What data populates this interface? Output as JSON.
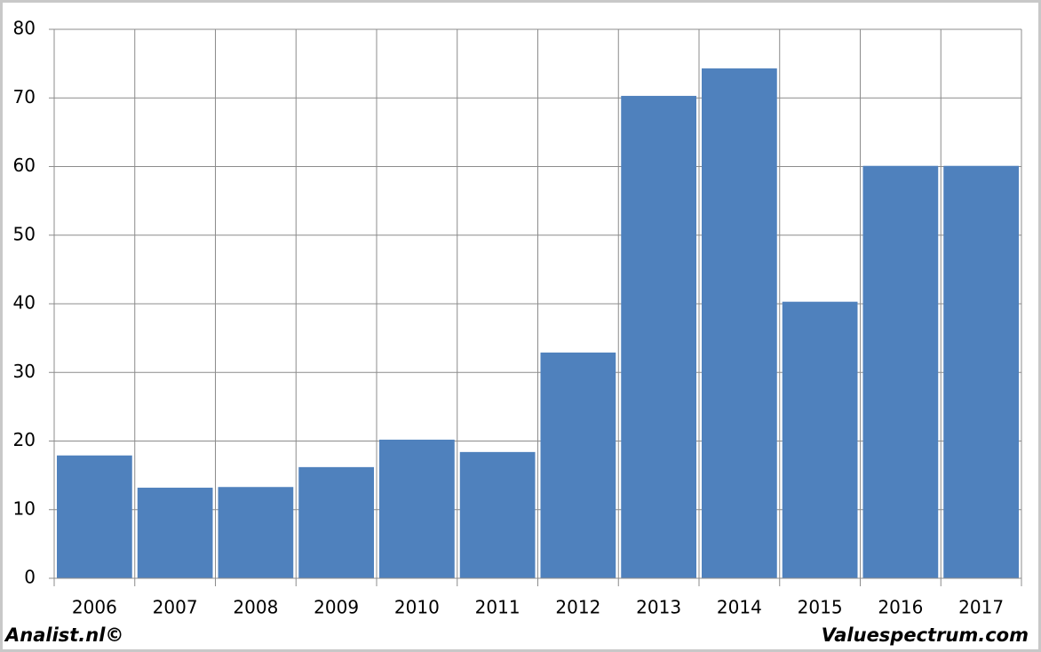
{
  "chart_data": {
    "type": "bar",
    "categories": [
      "2006",
      "2007",
      "2008",
      "2009",
      "2010",
      "2011",
      "2012",
      "2013",
      "2014",
      "2015",
      "2016",
      "2017"
    ],
    "values": [
      17.9,
      13.2,
      13.3,
      16.2,
      20.2,
      18.4,
      32.9,
      70.3,
      74.3,
      40.3,
      60.1,
      60.1
    ],
    "color": "#4f81bd",
    "ylim": [
      0,
      80
    ],
    "yticks": [
      0,
      10,
      20,
      30,
      40,
      50,
      60,
      70,
      80
    ],
    "grid": true,
    "footer_left": "Analist.nl©",
    "footer_right": "Valuespectrum.com"
  }
}
